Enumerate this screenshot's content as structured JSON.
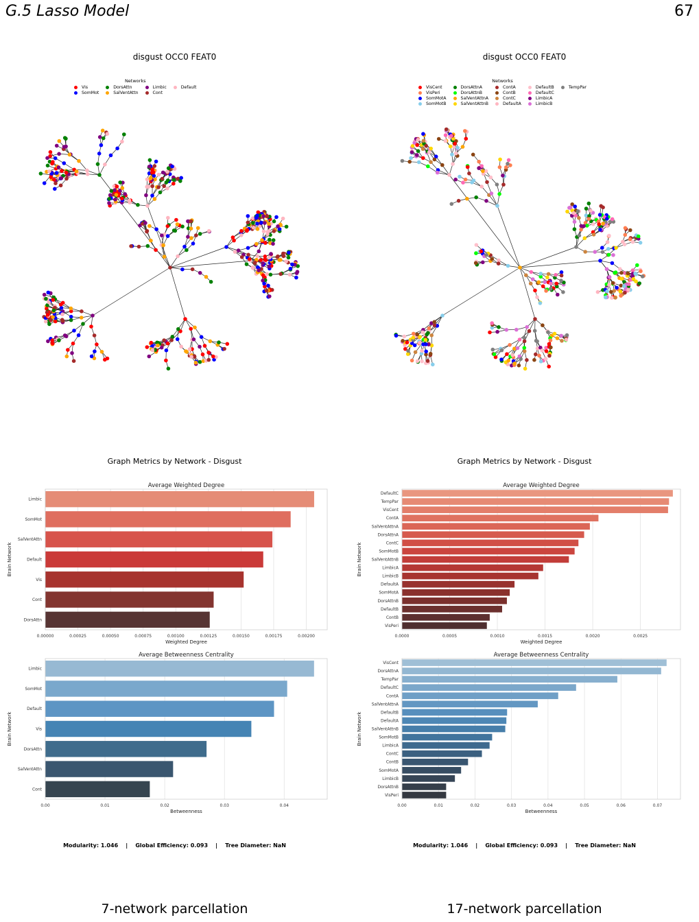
{
  "page": {
    "section": "G.5   Lasso Model",
    "page_number": "67"
  },
  "left": {
    "network_title": "disgust OCC0 FEAT0",
    "legend_title": "Networks",
    "legend_rows": 2,
    "legend": [
      {
        "name": "Vis",
        "color": "#ff0000"
      },
      {
        "name": "SomMot",
        "color": "#0000ff"
      },
      {
        "name": "DorsAttn",
        "color": "#008000"
      },
      {
        "name": "SalVentAttn",
        "color": "#ffa500"
      },
      {
        "name": "Limbic",
        "color": "#800080"
      },
      {
        "name": "Cont",
        "color": "#a52a2a"
      },
      {
        "name": "Default",
        "color": "#ffb6c1"
      }
    ],
    "metrics_title": "Graph Metrics by Network - Disgust",
    "footer": "Modularity: 1.046    |    Global Efficiency: 0.093    |    Tree Diameter: NaN",
    "caption": "7-network parcellation"
  },
  "right": {
    "network_title": "disgust OCC0 FEAT0",
    "legend_title": "Networks",
    "legend_rows": 4,
    "legend": [
      {
        "name": "VisCent",
        "color": "#ff0000"
      },
      {
        "name": "VisPeri",
        "color": "#ff7f50"
      },
      {
        "name": "SomMotA",
        "color": "#0000ff"
      },
      {
        "name": "SomMotB",
        "color": "#87ceeb"
      },
      {
        "name": "DorsAttnA",
        "color": "#008000"
      },
      {
        "name": "DorsAttnB",
        "color": "#00ff00"
      },
      {
        "name": "SalVentAttnA",
        "color": "#ffa500"
      },
      {
        "name": "SalVentAttnB",
        "color": "#ffd700"
      },
      {
        "name": "ContA",
        "color": "#a52a2a"
      },
      {
        "name": "ContB",
        "color": "#8b4513"
      },
      {
        "name": "ContC",
        "color": "#cd853f"
      },
      {
        "name": "DefaultA",
        "color": "#ffb6c1"
      },
      {
        "name": "DefaultB",
        "color": "#ffc0cb"
      },
      {
        "name": "DefaultC",
        "color": "#ff69b4"
      },
      {
        "name": "LimbicA",
        "color": "#800080"
      },
      {
        "name": "LimbicB",
        "color": "#da70d6"
      },
      {
        "name": "TempPar",
        "color": "#808080"
      }
    ],
    "metrics_title": "Graph Metrics by Network - Disgust",
    "footer": "Modularity: 1.046    |    Global Efficiency: 0.093    |    Tree Diameter: NaN",
    "caption": "17-network parcellation"
  },
  "chart_data": [
    {
      "id": "left-degree",
      "type": "bar",
      "orientation": "horizontal",
      "title": "Average Weighted Degree",
      "xlabel": "Weighted Degree",
      "ylabel": "Brain Network",
      "categories": [
        "Limbic",
        "SomMot",
        "SalVentAttn",
        "Default",
        "Vis",
        "Cont",
        "DorsAttn"
      ],
      "values": [
        0.00206,
        0.00188,
        0.00174,
        0.00167,
        0.00152,
        0.00129,
        0.00126
      ],
      "xlim": [
        0,
        0.00216
      ],
      "xticks": [
        0,
        0.00025,
        0.0005,
        0.00075,
        0.001,
        0.00125,
        0.0015,
        0.00175,
        0.002
      ],
      "xtick_labels": [
        "0.00000",
        "0.00025",
        "0.00050",
        "0.00075",
        "0.00100",
        "0.00125",
        "0.00150",
        "0.00175",
        "0.00200"
      ],
      "colors": [
        "#e58c76",
        "#df6e5f",
        "#d7534b",
        "#ca3a38",
        "#a7332e",
        "#833530",
        "#573433"
      ]
    },
    {
      "id": "left-betweenness",
      "type": "bar",
      "orientation": "horizontal",
      "title": "Average Betweenness Centrality",
      "xlabel": "Betweenness",
      "ylabel": "Brain Network",
      "categories": [
        "Limbic",
        "SomMot",
        "Default",
        "Vis",
        "DorsAttn",
        "SalVentAttn",
        "Cont"
      ],
      "values": [
        0.045,
        0.0405,
        0.0383,
        0.0345,
        0.027,
        0.0214,
        0.0175
      ],
      "xlim": [
        0,
        0.0472
      ],
      "xticks": [
        0,
        0.01,
        0.02,
        0.03,
        0.04
      ],
      "xtick_labels": [
        "0.00",
        "0.01",
        "0.02",
        "0.03",
        "0.04"
      ],
      "colors": [
        "#97b9d3",
        "#7aa8cc",
        "#5d95c4",
        "#4584b4",
        "#3f6c8c",
        "#3a566f",
        "#364550"
      ]
    },
    {
      "id": "right-degree",
      "type": "bar",
      "orientation": "horizontal",
      "title": "Average Weighted Degree",
      "xlabel": "Weighted Degree",
      "ylabel": "Brain Network",
      "categories": [
        "DefaultC",
        "TempPar",
        "VisCent",
        "ContA",
        "SalVentAttnA",
        "DorsAttnA",
        "ContC",
        "SomMotB",
        "SalVentAttnB",
        "LimbicA",
        "LimbicB",
        "DefaultA",
        "SomMotA",
        "DorsAttnB",
        "DefaultB",
        "ContB",
        "VisPeri"
      ],
      "values": [
        0.00284,
        0.0028,
        0.00279,
        0.00206,
        0.00197,
        0.00191,
        0.00185,
        0.00181,
        0.00175,
        0.00148,
        0.00143,
        0.00118,
        0.00113,
        0.0011,
        0.00105,
        0.00092,
        0.00089
      ],
      "xlim": [
        0,
        0.00292
      ],
      "xticks": [
        0,
        0.0005,
        0.001,
        0.0015,
        0.002,
        0.0025
      ],
      "xtick_labels": [
        "0.0000",
        "0.0005",
        "0.0010",
        "0.0015",
        "0.0020",
        "0.0025"
      ],
      "colors": [
        "#e9967f",
        "#e68a74",
        "#e37e6a",
        "#df7260",
        "#db6657",
        "#d65a4e",
        "#d14f46",
        "#cb453f",
        "#c23d39",
        "#b53834",
        "#a73430",
        "#98322e",
        "#8a312d",
        "#7b302d",
        "#6c302e",
        "#5d2f2f",
        "#4f2e2f"
      ]
    },
    {
      "id": "right-betweenness",
      "type": "bar",
      "orientation": "horizontal",
      "title": "Average Betweenness Centrality",
      "xlabel": "Betweenness",
      "ylabel": "Brain Network",
      "categories": [
        "VisCent",
        "DorsAttnA",
        "TempPar",
        "DefaultC",
        "ContA",
        "SalVentAttnA",
        "DefaultB",
        "DefaultA",
        "SalVentAttnB",
        "SomMotB",
        "LimbicA",
        "ContC",
        "ContB",
        "SomMotA",
        "LimbicB",
        "DorsAttnB",
        "VisPeri"
      ],
      "values": [
        0.0725,
        0.071,
        0.059,
        0.0477,
        0.0428,
        0.0372,
        0.0288,
        0.0286,
        0.0283,
        0.0247,
        0.024,
        0.0219,
        0.0181,
        0.0162,
        0.0145,
        0.0121,
        0.0121
      ],
      "xlim": [
        0,
        0.0763
      ],
      "xticks": [
        0,
        0.01,
        0.02,
        0.03,
        0.04,
        0.05,
        0.06,
        0.07
      ],
      "xtick_labels": [
        "0.00",
        "0.01",
        "0.02",
        "0.03",
        "0.04",
        "0.05",
        "0.06",
        "0.07"
      ],
      "colors": [
        "#9fbfd6",
        "#93b7d2",
        "#87afce",
        "#7ba7ca",
        "#6f9fc6",
        "#6397c2",
        "#578fbd",
        "#4d87b5",
        "#467eaa",
        "#41749d",
        "#3e6a8e",
        "#3b6080",
        "#395671",
        "#374d63",
        "#364556",
        "#353e4a",
        "#343840"
      ]
    }
  ]
}
